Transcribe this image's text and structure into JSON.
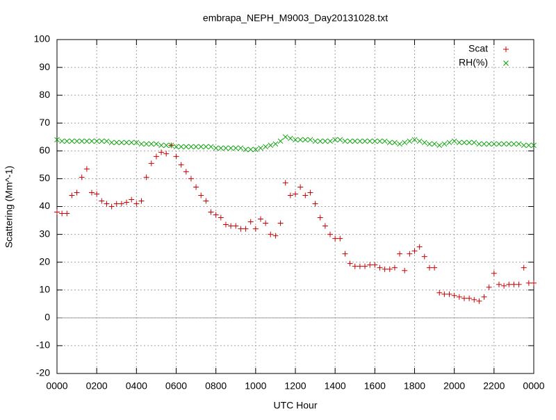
{
  "chart_data": {
    "type": "scatter",
    "title": "embrapa_NEPH_M9003_Day20131028.txt",
    "x_label": "UTC Hour",
    "y_label": "Scattering (Mm^-1)",
    "xlim": [
      0,
      24
    ],
    "ylim": [
      -20,
      100
    ],
    "xticks": [
      {
        "value": 0,
        "label": "0000"
      },
      {
        "value": 2,
        "label": "0200"
      },
      {
        "value": 4,
        "label": "0400"
      },
      {
        "value": 6,
        "label": "0600"
      },
      {
        "value": 8,
        "label": "0800"
      },
      {
        "value": 10,
        "label": "1000"
      },
      {
        "value": 12,
        "label": "1200"
      },
      {
        "value": 14,
        "label": "1400"
      },
      {
        "value": 16,
        "label": "1600"
      },
      {
        "value": 18,
        "label": "1800"
      },
      {
        "value": 20,
        "label": "2000"
      },
      {
        "value": 22,
        "label": "2200"
      },
      {
        "value": 24,
        "label": "0000"
      }
    ],
    "yticks": [
      -20,
      -10,
      0,
      10,
      20,
      30,
      40,
      50,
      60,
      70,
      80,
      90,
      100
    ],
    "grid": true,
    "legend": "top-right",
    "x": [
      0,
      0.25,
      0.5,
      0.75,
      1,
      1.25,
      1.5,
      1.75,
      2,
      2.25,
      2.5,
      2.75,
      3,
      3.25,
      3.5,
      3.75,
      4,
      4.25,
      4.5,
      4.75,
      5,
      5.25,
      5.5,
      5.75,
      6,
      6.25,
      6.5,
      6.75,
      7,
      7.25,
      7.5,
      7.75,
      8,
      8.25,
      8.5,
      8.75,
      9,
      9.25,
      9.5,
      9.75,
      10,
      10.25,
      10.5,
      10.75,
      11,
      11.25,
      11.5,
      11.75,
      12,
      12.25,
      12.5,
      12.75,
      13,
      13.25,
      13.5,
      13.75,
      14,
      14.25,
      14.5,
      14.75,
      15,
      15.25,
      15.5,
      15.75,
      16,
      16.25,
      16.5,
      16.75,
      17,
      17.25,
      17.5,
      17.75,
      18,
      18.25,
      18.5,
      18.75,
      19,
      19.25,
      19.5,
      19.75,
      20,
      20.25,
      20.5,
      20.75,
      21,
      21.25,
      21.5,
      21.75,
      22,
      22.25,
      22.5,
      22.75,
      23,
      23.25,
      23.5,
      23.75,
      24
    ],
    "series": [
      {
        "name": "Scat",
        "color": "#cc0000",
        "marker": "plus",
        "values": [
          38,
          37.5,
          37.5,
          44,
          45,
          50.5,
          53.5,
          45,
          44.5,
          42,
          41,
          40,
          41,
          41,
          41.5,
          42.5,
          41,
          42,
          50.5,
          55.5,
          58,
          59.5,
          59,
          62,
          58,
          55,
          52.5,
          50,
          47,
          44,
          42,
          38,
          37,
          36,
          33.5,
          33,
          33,
          32,
          32,
          34.5,
          32,
          35.5,
          34,
          30,
          29.5,
          34,
          48.5,
          44,
          44.5,
          47,
          44,
          45,
          41,
          36,
          33,
          30,
          28.5,
          28.5,
          23,
          19.5,
          18.5,
          18.5,
          18.5,
          19,
          19,
          18,
          17.5,
          17.5,
          18,
          23,
          17,
          23,
          24,
          25.5,
          22,
          18,
          18,
          9,
          8.5,
          8.5,
          8,
          7.5,
          7,
          7,
          6.5,
          6,
          7.5,
          11,
          16,
          12,
          11.5,
          12,
          12,
          12,
          18,
          12.5,
          12.5
        ]
      },
      {
        "name": "RH(%)",
        "color": "#00a000",
        "marker": "cross",
        "values": [
          64,
          63.5,
          63.5,
          63.5,
          63.5,
          63.5,
          63.5,
          63.5,
          63.5,
          63.5,
          63.5,
          63,
          63,
          63,
          63,
          63,
          63,
          62.5,
          62.5,
          62.5,
          62.5,
          62,
          62,
          62,
          61.5,
          61.5,
          61.5,
          61.5,
          61.5,
          61.5,
          61.5,
          61.5,
          61,
          61,
          61,
          61,
          61,
          61,
          60.5,
          60.5,
          60.5,
          61,
          61.5,
          62,
          62.5,
          63.5,
          65,
          64.5,
          64,
          64,
          64,
          64,
          63.5,
          63.5,
          63.5,
          63.5,
          64,
          64,
          63.5,
          63.5,
          63.5,
          63.5,
          63.5,
          63.5,
          63.5,
          63.5,
          63.5,
          63,
          63,
          62.5,
          63,
          63.5,
          64,
          63.5,
          63,
          62.5,
          62.5,
          62,
          62.5,
          63,
          63.5,
          63,
          63,
          63,
          63,
          62.5,
          62.5,
          62.5,
          62.5,
          62.5,
          62.5,
          62.5,
          62.5,
          62.5,
          62,
          62,
          62
        ]
      }
    ]
  }
}
